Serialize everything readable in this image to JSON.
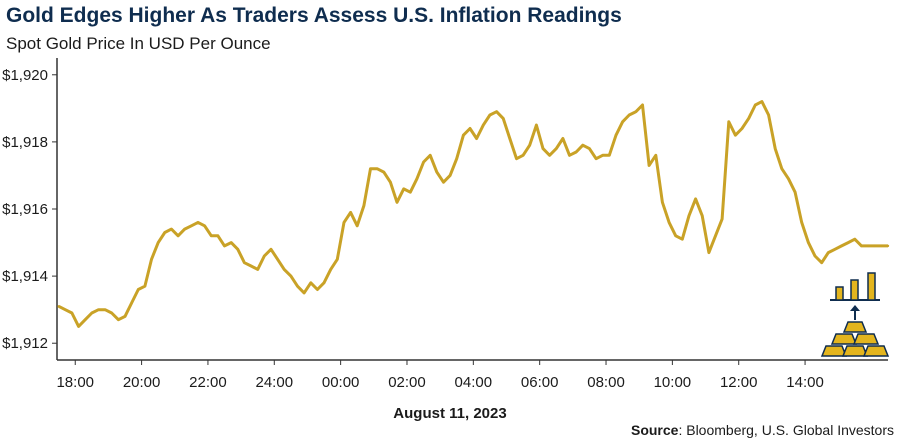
{
  "title": "Gold Edges Higher As Traders Assess U.S. Inflation Readings",
  "subtitle": "Spot Gold Price In USD Per Ounce",
  "date_label": "August 11, 2023",
  "source": {
    "label": "Source",
    "text": ": Bloomberg, U.S. Global Investors"
  },
  "colors": {
    "line": "#c9a227",
    "title": "#0f2d4f",
    "axis": "#333333",
    "icon_gold": "#e3b51e",
    "icon_outline": "#0f2d4f"
  },
  "icon": "gold-bars-rising-icon",
  "chart_data": {
    "type": "line",
    "title": "Gold Edges Higher As Traders Assess U.S. Inflation Readings",
    "subtitle": "Spot Gold Price In USD Per Ounce",
    "xlabel": "August 11, 2023",
    "ylabel": "",
    "grid": false,
    "x_ticks": [
      "18:00",
      "20:00",
      "22:00",
      "24:00",
      "00:00",
      "02:00",
      "04:00",
      "06:00",
      "08:00",
      "10:00",
      "12:00",
      "14:00"
    ],
    "y_ticks": [
      "$1,912",
      "$1,914",
      "$1,916",
      "$1,918",
      "$1,920"
    ],
    "y_tick_values": [
      1912,
      1914,
      1916,
      1918,
      1920
    ],
    "ylim": [
      1911.5,
      1920.5
    ],
    "x_unit": "hours since 18:00 on the axis",
    "xlim": [
      -0.55,
      24.5
    ],
    "series": [
      {
        "name": "",
        "x": [
          -0.5,
          -0.3,
          -0.1,
          0.1,
          0.3,
          0.5,
          0.7,
          0.9,
          1.1,
          1.3,
          1.5,
          1.7,
          1.9,
          2.1,
          2.3,
          2.5,
          2.7,
          2.9,
          3.1,
          3.3,
          3.5,
          3.7,
          3.9,
          4.1,
          4.3,
          4.5,
          4.7,
          4.9,
          5.1,
          5.3,
          5.5,
          5.7,
          5.9,
          6.1,
          6.3,
          6.5,
          6.7,
          6.9,
          7.1,
          7.3,
          7.5,
          7.7,
          7.9,
          8.1,
          8.3,
          8.5,
          8.7,
          8.9,
          9.1,
          9.3,
          9.5,
          9.7,
          9.9,
          10.1,
          10.3,
          10.5,
          10.7,
          10.9,
          11.1,
          11.3,
          11.5,
          11.7,
          11.9,
          12.1,
          12.3,
          12.5,
          12.7,
          12.9,
          13.1,
          13.3,
          13.5,
          13.7,
          13.9,
          14.1,
          14.3,
          14.5,
          14.7,
          14.9,
          15.1,
          15.3,
          15.5,
          15.7,
          15.9,
          16.1,
          16.3,
          16.5,
          16.7,
          16.9,
          17.1,
          17.3,
          17.5,
          17.7,
          17.9,
          18.1,
          18.3,
          18.5,
          18.7,
          18.9,
          19.1,
          19.3,
          19.5,
          19.7,
          19.9,
          20.1,
          20.3,
          20.5,
          20.7,
          20.9,
          21.1,
          21.3,
          21.5,
          21.7,
          21.9,
          22.1,
          22.3,
          22.5,
          22.7,
          22.9,
          23.1,
          23.3,
          23.5,
          23.7,
          23.9,
          24.1,
          24.3,
          24.5
        ],
        "values": [
          1913.1,
          1913.0,
          1912.9,
          1912.5,
          1912.7,
          1912.9,
          1913.0,
          1913.0,
          1912.9,
          1912.7,
          1912.8,
          1913.2,
          1913.6,
          1913.7,
          1914.5,
          1915.0,
          1915.3,
          1915.4,
          1915.2,
          1915.4,
          1915.5,
          1915.6,
          1915.5,
          1915.2,
          1915.2,
          1914.9,
          1915.0,
          1914.8,
          1914.4,
          1914.3,
          1914.2,
          1914.6,
          1914.8,
          1914.5,
          1914.2,
          1914.0,
          1913.7,
          1913.5,
          1913.8,
          1913.6,
          1913.8,
          1914.2,
          1914.5,
          1915.6,
          1915.9,
          1915.5,
          1916.1,
          1917.2,
          1917.2,
          1917.1,
          1916.8,
          1916.2,
          1916.6,
          1916.5,
          1916.9,
          1917.4,
          1917.6,
          1917.1,
          1916.8,
          1917.0,
          1917.5,
          1918.2,
          1918.4,
          1918.1,
          1918.5,
          1918.8,
          1918.9,
          1918.7,
          1918.1,
          1917.5,
          1917.6,
          1917.9,
          1918.5,
          1917.8,
          1917.6,
          1917.8,
          1918.1,
          1917.6,
          1917.7,
          1917.9,
          1917.8,
          1917.5,
          1917.6,
          1917.6,
          1918.2,
          1918.6,
          1918.8,
          1918.9,
          1919.1,
          1917.3,
          1917.6,
          1916.2,
          1915.6,
          1915.2,
          1915.1,
          1915.8,
          1916.3,
          1915.8,
          1914.7,
          1915.2,
          1915.7,
          1918.6,
          1918.2,
          1918.4,
          1918.7,
          1919.1,
          1919.2,
          1918.8,
          1917.8,
          1917.2,
          1916.9,
          1916.5,
          1915.6,
          1915.0,
          1914.6,
          1914.4,
          1914.7,
          1914.8,
          1914.9,
          1915.0,
          1915.1,
          1914.9,
          1914.9,
          1914.9,
          1914.9,
          1914.9
        ]
      }
    ]
  }
}
